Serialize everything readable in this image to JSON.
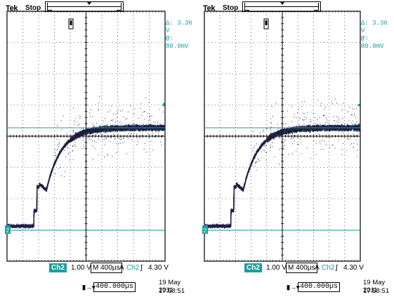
{
  "colors": {
    "trace": "#1a1a2a",
    "trace_accent": "#2a3a8a",
    "cursor_line": "#1aa0a0",
    "ground_marker": "#1aa0a0",
    "grid": "#000000"
  },
  "icons": {
    "trigger_position": "bracket-marker-icon",
    "ground_reference": "channel-ground-icon",
    "trigger_level": "trigger-level-icon",
    "horizontal_position": "horizontal-position-icon"
  },
  "panels": [
    {
      "brand": "Tek",
      "acq_state": "Stop",
      "cursor": {
        "delta_label": "Δ:",
        "delta_value": "3.36 V",
        "at_label": "@:",
        "at_value": "80.0mV"
      },
      "status": {
        "channel": "Ch2",
        "scale": "1.00 V",
        "timebase": "M 400µs",
        "trigger_source_prefix": "A",
        "trigger_source": "Ch2",
        "trigger_slope": "∫",
        "trigger_level": "4.30 V"
      },
      "horizontal_position": "400.000µs",
      "date": "19 May 2011",
      "time": "17:58:51"
    },
    {
      "brand": "Tek",
      "acq_state": "Stop",
      "cursor": {
        "delta_label": "Δ:",
        "delta_value": "3.36 V",
        "at_label": "@:",
        "at_value": "80.0mV"
      },
      "status": {
        "channel": "Ch2",
        "scale": "1.00 V",
        "timebase": "M 400µs",
        "trigger_source_prefix": "A",
        "trigger_source": "Ch2",
        "trigger_slope": "∫",
        "trigger_level": "4.30 V"
      },
      "horizontal_position": "400.000µs",
      "date": "19 May 2011",
      "time": "17:58:51"
    }
  ]
}
